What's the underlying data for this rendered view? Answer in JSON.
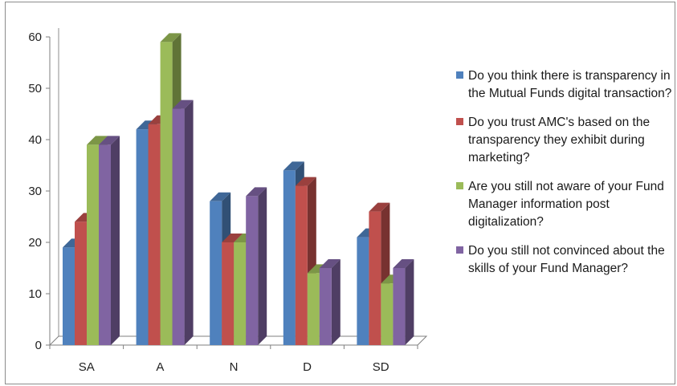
{
  "chart_data": {
    "type": "bar",
    "title": "",
    "xlabel": "",
    "ylabel": "",
    "categories": [
      "SA",
      "A",
      "N",
      "D",
      "SD"
    ],
    "ylim": [
      0,
      60
    ],
    "yticks": [
      0,
      10,
      20,
      30,
      40,
      50,
      60
    ],
    "grid": false,
    "legend_position": "right",
    "series": [
      {
        "name": "Do you think there is transparency in the Mutual Funds digital transaction?",
        "values": [
          19,
          42,
          28,
          34,
          21
        ],
        "color": "#4f81bd"
      },
      {
        "name": "Do you trust AMC's based on the transparency they exhibit during marketing?",
        "values": [
          24,
          43,
          20,
          31,
          26
        ],
        "color": "#c0504d"
      },
      {
        "name": "Are you still not aware of your Fund Manager information post digitalization?",
        "values": [
          39,
          59,
          20,
          14,
          12
        ],
        "color": "#9bbb59"
      },
      {
        "name": "Do you still not convinced about the skills of your Fund Manager?",
        "values": [
          39,
          46,
          29,
          15,
          15
        ],
        "color": "#8064a2"
      }
    ]
  }
}
